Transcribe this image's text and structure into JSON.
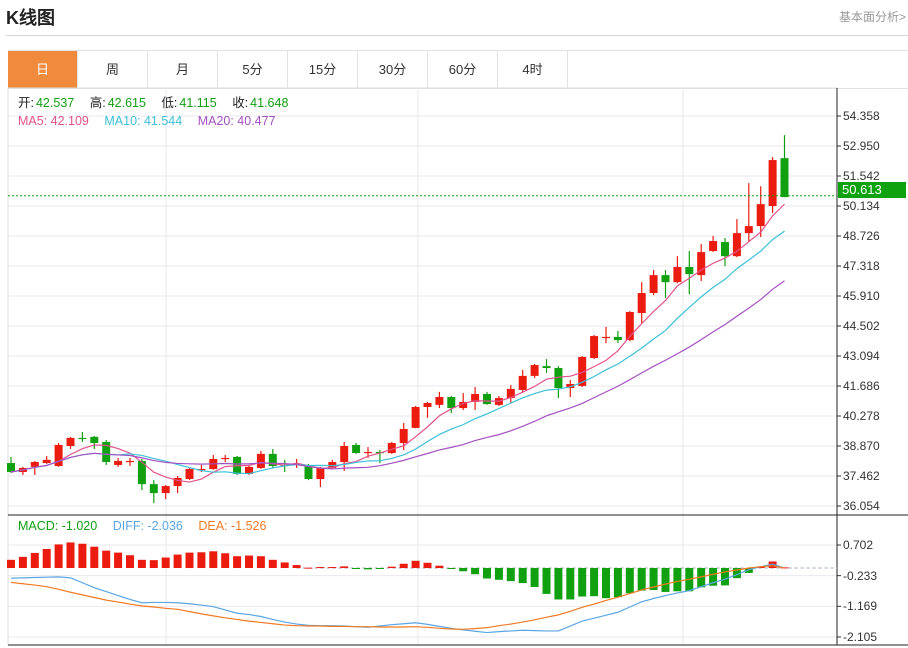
{
  "header": {
    "title": "K线图",
    "link": "基本面分析>"
  },
  "tabs": [
    {
      "label": "日",
      "active": true
    },
    {
      "label": "周"
    },
    {
      "label": "月"
    },
    {
      "label": "5分"
    },
    {
      "label": "15分"
    },
    {
      "label": "30分"
    },
    {
      "label": "60分"
    },
    {
      "label": "4时"
    }
  ],
  "ohlc_info": {
    "open_label": "开:",
    "open": "42.537",
    "high_label": "高:",
    "high": "42.615",
    "low_label": "低:",
    "low": "41.115",
    "close_label": "收:",
    "close": "41.648"
  },
  "ma_info": {
    "ma5": "MA5: 42.109",
    "ma10": "MA10: 41.544",
    "ma20": "MA20: 40.477"
  },
  "macd_info": {
    "macd": "MACD: -1.020",
    "diff": "DIFF: -2.036",
    "dea": "DEA: -1.526"
  },
  "current_price": "50.613",
  "colors": {
    "up": "#ec1b0f",
    "down": "#10a010",
    "ma5": "#e2528c",
    "ma10": "#3cc0d8",
    "ma20": "#a550c2",
    "diff": "#5aa6e4",
    "dea": "#f07a22",
    "tab_active": "#f08a3c"
  },
  "chart_data": [
    {
      "type": "candlestick",
      "ylim": [
        36.054,
        54.358
      ],
      "yticks": [
        "54.358",
        "52.950",
        "51.542",
        "50.134",
        "48.726",
        "47.318",
        "45.910",
        "44.502",
        "43.094",
        "41.686",
        "40.278",
        "38.870",
        "37.462",
        "36.054"
      ],
      "grid": true,
      "ohlc": [
        [
          38.07,
          38.36,
          37.6,
          37.65
        ],
        [
          37.65,
          37.89,
          37.51,
          37.84
        ],
        [
          37.89,
          38.17,
          37.51,
          38.12
        ],
        [
          38.07,
          38.4,
          38.03,
          38.22
        ],
        [
          37.93,
          39.01,
          37.89,
          38.92
        ],
        [
          38.87,
          39.3,
          38.73,
          39.25
        ],
        [
          39.25,
          39.53,
          39.06,
          39.2
        ],
        [
          39.3,
          39.34,
          38.73,
          39.01
        ],
        [
          39.06,
          39.15,
          37.98,
          38.12
        ],
        [
          37.98,
          38.31,
          37.89,
          38.17
        ],
        [
          38.15,
          38.31,
          37.93,
          38.17
        ],
        [
          38.17,
          38.26,
          36.8,
          37.08
        ],
        [
          37.08,
          37.27,
          36.19,
          36.66
        ],
        [
          36.66,
          37.04,
          36.38,
          36.99
        ],
        [
          36.99,
          37.46,
          36.66,
          37.37
        ],
        [
          37.32,
          37.84,
          37.27,
          37.79
        ],
        [
          37.77,
          37.98,
          37.65,
          37.79
        ],
        [
          37.79,
          38.45,
          37.75,
          38.26
        ],
        [
          38.29,
          38.45,
          38.12,
          38.31
        ],
        [
          38.36,
          38.4,
          37.51,
          37.56
        ],
        [
          37.56,
          37.93,
          37.51,
          37.89
        ],
        [
          37.84,
          38.64,
          37.79,
          38.5
        ],
        [
          38.5,
          38.73,
          37.84,
          37.93
        ],
        [
          37.98,
          38.22,
          37.65,
          37.96
        ],
        [
          38.01,
          38.26,
          37.84,
          38.03
        ],
        [
          37.93,
          38.03,
          37.27,
          37.32
        ],
        [
          37.32,
          37.89,
          36.94,
          37.84
        ],
        [
          37.84,
          38.22,
          37.79,
          38.12
        ],
        [
          38.12,
          39.06,
          37.7,
          38.87
        ],
        [
          38.92,
          39.01,
          38.5,
          38.54
        ],
        [
          38.57,
          38.82,
          38.31,
          38.59
        ],
        [
          38.59,
          38.68,
          38.07,
          38.57
        ],
        [
          38.54,
          39.06,
          38.5,
          39.01
        ],
        [
          39.01,
          39.95,
          38.68,
          39.67
        ],
        [
          39.72,
          40.75,
          39.7,
          40.7
        ],
        [
          40.7,
          40.94,
          40.19,
          40.89
        ],
        [
          40.8,
          41.41,
          40.65,
          41.17
        ],
        [
          41.17,
          41.22,
          40.42,
          40.65
        ],
        [
          40.65,
          41.36,
          40.56,
          40.94
        ],
        [
          40.94,
          41.64,
          40.56,
          41.31
        ],
        [
          41.31,
          41.41,
          40.8,
          40.84
        ],
        [
          40.8,
          41.22,
          40.75,
          41.12
        ],
        [
          41.12,
          41.73,
          40.89,
          41.55
        ],
        [
          41.5,
          42.44,
          41.41,
          42.16
        ],
        [
          42.16,
          42.72,
          42.06,
          42.67
        ],
        [
          42.62,
          42.95,
          42.3,
          42.53
        ],
        [
          42.53,
          42.62,
          41.12,
          41.59
        ],
        [
          41.59,
          41.97,
          41.17,
          41.78
        ],
        [
          41.69,
          43.09,
          41.64,
          43.05
        ],
        [
          43.0,
          44.08,
          42.95,
          44.03
        ],
        [
          43.97,
          44.46,
          43.69,
          43.99
        ],
        [
          43.99,
          44.27,
          43.7,
          43.84
        ],
        [
          43.84,
          45.2,
          43.79,
          45.16
        ],
        [
          45.11,
          46.56,
          44.64,
          46.05
        ],
        [
          46.05,
          47.13,
          45.95,
          46.89
        ],
        [
          46.89,
          47.13,
          45.81,
          46.56
        ],
        [
          46.56,
          47.78,
          46.51,
          47.27
        ],
        [
          47.27,
          48.02,
          45.99,
          46.94
        ],
        [
          46.89,
          48.35,
          46.61,
          47.97
        ],
        [
          48.02,
          48.73,
          47.97,
          48.49
        ],
        [
          48.44,
          48.63,
          47.31,
          47.78
        ],
        [
          47.78,
          49.52,
          47.73,
          48.86
        ],
        [
          48.86,
          51.21,
          48.44,
          49.19
        ],
        [
          49.19,
          51.06,
          48.68,
          50.22
        ],
        [
          50.13,
          52.43,
          49.8,
          52.29
        ],
        [
          52.38,
          53.46,
          50.55,
          50.55
        ]
      ],
      "ma_periods": [
        5,
        10,
        20
      ]
    },
    {
      "type": "bar+line",
      "ylim": [
        -2.105,
        0.702
      ],
      "yticks": [
        "0.702",
        "-0.233",
        "-1.169",
        "-2.105"
      ],
      "macd_hist": [
        0.25,
        0.34,
        0.46,
        0.58,
        0.72,
        0.78,
        0.74,
        0.65,
        0.53,
        0.47,
        0.39,
        0.25,
        0.24,
        0.32,
        0.41,
        0.47,
        0.48,
        0.51,
        0.45,
        0.36,
        0.38,
        0.36,
        0.25,
        0.17,
        0.09,
        0.01,
        0.03,
        0.03,
        0.05,
        -0.03,
        -0.04,
        -0.03,
        0.04,
        0.13,
        0.22,
        0.16,
        0.07,
        -0.03,
        -0.1,
        -0.19,
        -0.32,
        -0.36,
        -0.4,
        -0.46,
        -0.58,
        -0.79,
        -0.96,
        -0.96,
        -0.87,
        -0.86,
        -0.92,
        -0.89,
        -0.77,
        -0.69,
        -0.67,
        -0.73,
        -0.71,
        -0.71,
        -0.59,
        -0.54,
        -0.53,
        -0.31,
        -0.15,
        0.04,
        0.2,
        0.02
      ],
      "diff": [
        -0.31,
        -0.3,
        -0.29,
        -0.28,
        -0.27,
        -0.3,
        -0.45,
        -0.6,
        -0.72,
        -0.84,
        -0.96,
        -1.06,
        -1.05,
        -1.05,
        -1.06,
        -1.09,
        -1.13,
        -1.18,
        -1.28,
        -1.38,
        -1.42,
        -1.48,
        -1.57,
        -1.65,
        -1.71,
        -1.75,
        -1.76,
        -1.76,
        -1.77,
        -1.79,
        -1.81,
        -1.77,
        -1.73,
        -1.7,
        -1.67,
        -1.72,
        -1.78,
        -1.84,
        -1.89,
        -1.93,
        -1.97,
        -1.94,
        -1.92,
        -1.9,
        -1.91,
        -1.92,
        -1.92,
        -1.77,
        -1.62,
        -1.53,
        -1.44,
        -1.35,
        -1.19,
        -1.03,
        -0.93,
        -0.84,
        -0.76,
        -0.69,
        -0.57,
        -0.45,
        -0.34,
        -0.2,
        -0.05,
        0.04,
        0.12,
        0.0
      ],
      "dea": [
        -0.44,
        -0.48,
        -0.52,
        -0.57,
        -0.65,
        -0.74,
        -0.82,
        -0.9,
        -0.98,
        -1.04,
        -1.1,
        -1.16,
        -1.19,
        -1.23,
        -1.26,
        -1.33,
        -1.4,
        -1.46,
        -1.52,
        -1.57,
        -1.62,
        -1.66,
        -1.7,
        -1.74,
        -1.76,
        -1.77,
        -1.77,
        -1.78,
        -1.78,
        -1.79,
        -1.79,
        -1.8,
        -1.8,
        -1.8,
        -1.79,
        -1.81,
        -1.84,
        -1.86,
        -1.87,
        -1.85,
        -1.82,
        -1.76,
        -1.71,
        -1.65,
        -1.58,
        -1.5,
        -1.43,
        -1.32,
        -1.2,
        -1.1,
        -0.99,
        -0.89,
        -0.78,
        -0.67,
        -0.58,
        -0.49,
        -0.41,
        -0.34,
        -0.27,
        -0.19,
        -0.12,
        -0.06,
        0.0,
        0.04,
        0.07,
        0.0
      ]
    }
  ]
}
